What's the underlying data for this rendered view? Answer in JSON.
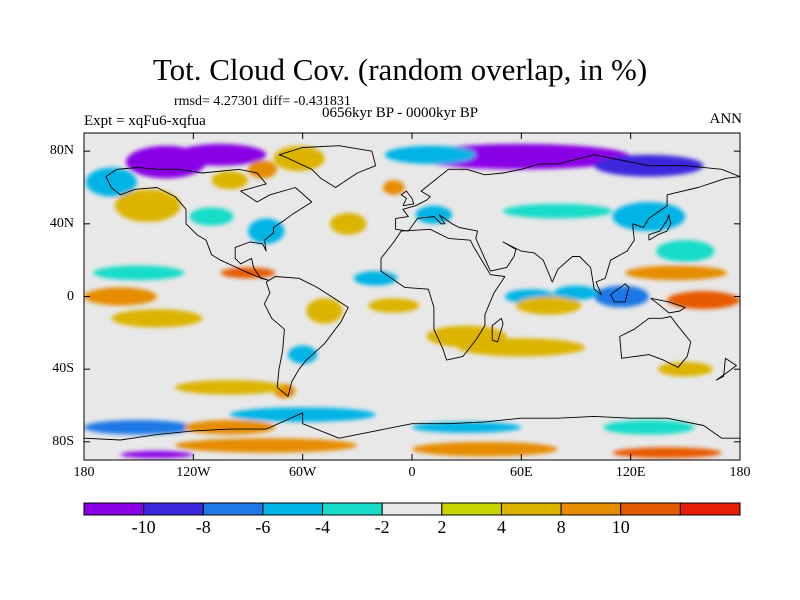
{
  "map": {
    "title": "Tot. Cloud Cov. (random overlap, in %)",
    "stats": "rmsd= 4.27301  diff= -0.431831",
    "expt": "Expt = xqFu6-xqfua",
    "period": "0656kyr BP - 0000kyr BP",
    "season": "ANN",
    "projection": "cylindrical equidistant",
    "lon_range": [
      -180,
      180
    ],
    "lat_range": [
      -90,
      90
    ],
    "lat_ticks": [
      {
        "value": 80,
        "label": "80N"
      },
      {
        "value": 40,
        "label": "40N"
      },
      {
        "value": 0,
        "label": "0"
      },
      {
        "value": -40,
        "label": "40S"
      },
      {
        "value": -80,
        "label": "80S"
      }
    ],
    "lon_ticks": [
      {
        "value": -180,
        "label": "180"
      },
      {
        "value": -120,
        "label": "120W"
      },
      {
        "value": -60,
        "label": "60W"
      },
      {
        "value": 0,
        "label": "0"
      },
      {
        "value": 60,
        "label": "60E"
      },
      {
        "value": 120,
        "label": "120E"
      },
      {
        "value": 180,
        "label": "180"
      }
    ],
    "background_color": "#e8e8e8"
  },
  "colorbar": {
    "colors": [
      "#8a00e6",
      "#3a28dc",
      "#1e78e6",
      "#00b4e6",
      "#18dcc8",
      "#e8e8e8",
      "#c8d400",
      "#dcb400",
      "#e68c00",
      "#e65a00",
      "#e61e0a"
    ],
    "labels": [
      {
        "boundary": 1,
        "text": "-10"
      },
      {
        "boundary": 2,
        "text": "-8"
      },
      {
        "boundary": 3,
        "text": "-6"
      },
      {
        "boundary": 4,
        "text": "-4"
      },
      {
        "boundary": 5,
        "text": "-2"
      },
      {
        "boundary": 6,
        "text": "2"
      },
      {
        "boundary": 7,
        "text": "4"
      },
      {
        "boundary": 8,
        "text": "8"
      },
      {
        "boundary": 9,
        "text": "10"
      }
    ]
  },
  "anomalies": [
    {
      "lon": -135,
      "lat": 74,
      "rx": 22,
      "ry": 9,
      "level": -11
    },
    {
      "lon": -105,
      "lat": 78,
      "rx": 25,
      "ry": 6,
      "level": -11
    },
    {
      "lon": -62,
      "lat": 76,
      "rx": 14,
      "ry": 7,
      "level": 5
    },
    {
      "lon": -82,
      "lat": 70,
      "rx": 8,
      "ry": 5,
      "level": 8
    },
    {
      "lon": -100,
      "lat": 64,
      "rx": 10,
      "ry": 5,
      "level": 7
    },
    {
      "lon": 60,
      "lat": 77,
      "rx": 60,
      "ry": 7,
      "level": -11
    },
    {
      "lon": 130,
      "lat": 72,
      "rx": 30,
      "ry": 6,
      "level": -9
    },
    {
      "lon": 10,
      "lat": 78,
      "rx": 25,
      "ry": 5,
      "level": -5
    },
    {
      "lon": -165,
      "lat": 63,
      "rx": 14,
      "ry": 8,
      "level": -5
    },
    {
      "lon": -145,
      "lat": 50,
      "rx": 18,
      "ry": 9,
      "level": 7
    },
    {
      "lon": -110,
      "lat": 44,
      "rx": 12,
      "ry": 5,
      "level": -3
    },
    {
      "lon": -80,
      "lat": 36,
      "rx": 10,
      "ry": 7,
      "level": -5
    },
    {
      "lon": -35,
      "lat": 40,
      "rx": 10,
      "ry": 6,
      "level": 6
    },
    {
      "lon": -10,
      "lat": 60,
      "rx": 6,
      "ry": 4,
      "level": 8
    },
    {
      "lon": 12,
      "lat": 45,
      "rx": 10,
      "ry": 5,
      "level": -5
    },
    {
      "lon": 80,
      "lat": 47,
      "rx": 30,
      "ry": 4,
      "level": -3
    },
    {
      "lon": 130,
      "lat": 44,
      "rx": 20,
      "ry": 8,
      "level": -5
    },
    {
      "lon": 150,
      "lat": 25,
      "rx": 16,
      "ry": 6,
      "level": -3
    },
    {
      "lon": 145,
      "lat": 13,
      "rx": 28,
      "ry": 4,
      "level": 8
    },
    {
      "lon": -150,
      "lat": 13,
      "rx": 25,
      "ry": 4,
      "level": -3
    },
    {
      "lon": -90,
      "lat": 13,
      "rx": 15,
      "ry": 3,
      "level": 10
    },
    {
      "lon": -160,
      "lat": 0,
      "rx": 20,
      "ry": 5,
      "level": 8
    },
    {
      "lon": -140,
      "lat": -12,
      "rx": 25,
      "ry": 5,
      "level": 6
    },
    {
      "lon": 160,
      "lat": -2,
      "rx": 20,
      "ry": 5,
      "level": 10
    },
    {
      "lon": 115,
      "lat": 0,
      "rx": 15,
      "ry": 6,
      "level": -7
    },
    {
      "lon": 90,
      "lat": 2,
      "rx": 12,
      "ry": 4,
      "level": -5
    },
    {
      "lon": 65,
      "lat": 0,
      "rx": 14,
      "ry": 4,
      "level": -5
    },
    {
      "lon": 75,
      "lat": -5,
      "rx": 18,
      "ry": 5,
      "level": 6
    },
    {
      "lon": 30,
      "lat": -22,
      "rx": 22,
      "ry": 6,
      "level": 6
    },
    {
      "lon": 60,
      "lat": -28,
      "rx": 35,
      "ry": 5,
      "level": 5
    },
    {
      "lon": -20,
      "lat": 10,
      "rx": 12,
      "ry": 4,
      "level": -5
    },
    {
      "lon": -10,
      "lat": -5,
      "rx": 14,
      "ry": 4,
      "level": 7
    },
    {
      "lon": -48,
      "lat": -8,
      "rx": 10,
      "ry": 7,
      "level": 5
    },
    {
      "lon": -60,
      "lat": -32,
      "rx": 8,
      "ry": 5,
      "level": -5
    },
    {
      "lon": -70,
      "lat": -52,
      "rx": 6,
      "ry": 4,
      "level": 9
    },
    {
      "lon": -100,
      "lat": -50,
      "rx": 30,
      "ry": 4,
      "level": 5
    },
    {
      "lon": 150,
      "lat": -40,
      "rx": 15,
      "ry": 4,
      "level": 5
    },
    {
      "lon": -60,
      "lat": -65,
      "rx": 40,
      "ry": 4,
      "level": -5
    },
    {
      "lon": -150,
      "lat": -72,
      "rx": 30,
      "ry": 4,
      "level": -7
    },
    {
      "lon": -100,
      "lat": -72,
      "rx": 25,
      "ry": 4,
      "level": 8
    },
    {
      "lon": 30,
      "lat": -72,
      "rx": 30,
      "ry": 3,
      "level": -5
    },
    {
      "lon": 130,
      "lat": -72,
      "rx": 25,
      "ry": 4,
      "level": -3
    },
    {
      "lon": -80,
      "lat": -82,
      "rx": 50,
      "ry": 4,
      "level": 9
    },
    {
      "lon": 40,
      "lat": -84,
      "rx": 40,
      "ry": 4,
      "level": 8
    },
    {
      "lon": 140,
      "lat": -86,
      "rx": 30,
      "ry": 3,
      "level": 10
    },
    {
      "lon": -140,
      "lat": -87,
      "rx": 20,
      "ry": 2,
      "level": -11
    }
  ],
  "coastlines": [
    {
      "name": "north-america",
      "points": [
        [
          -168,
          66
        ],
        [
          -162,
          70
        ],
        [
          -150,
          71
        ],
        [
          -140,
          70
        ],
        [
          -128,
          70
        ],
        [
          -115,
          68
        ],
        [
          -95,
          70
        ],
        [
          -85,
          68
        ],
        [
          -80,
          62
        ],
        [
          -94,
          58
        ],
        [
          -85,
          52
        ],
        [
          -78,
          56
        ],
        [
          -64,
          60
        ],
        [
          -55,
          52
        ],
        [
          -66,
          45
        ],
        [
          -70,
          42
        ],
        [
          -76,
          38
        ],
        [
          -76,
          35
        ],
        [
          -81,
          31
        ],
        [
          -80,
          25
        ],
        [
          -82,
          29
        ],
        [
          -89,
          30
        ],
        [
          -97,
          27
        ],
        [
          -97,
          21
        ],
        [
          -94,
          18
        ],
        [
          -88,
          21
        ],
        [
          -87,
          16
        ],
        [
          -83,
          10
        ],
        [
          -79,
          9
        ],
        [
          -85,
          11
        ],
        [
          -92,
          14
        ],
        [
          -105,
          20
        ],
        [
          -110,
          23
        ],
        [
          -113,
          31
        ],
        [
          -118,
          34
        ],
        [
          -124,
          40
        ],
        [
          -124,
          48
        ],
        [
          -130,
          55
        ],
        [
          -140,
          60
        ],
        [
          -152,
          59
        ],
        [
          -160,
          56
        ],
        [
          -165,
          60
        ],
        [
          -168,
          66
        ]
      ]
    },
    {
      "name": "greenland",
      "points": [
        [
          -73,
          78
        ],
        [
          -60,
          82
        ],
        [
          -40,
          83
        ],
        [
          -22,
          80
        ],
        [
          -20,
          72
        ],
        [
          -30,
          68
        ],
        [
          -42,
          60
        ],
        [
          -50,
          65
        ],
        [
          -55,
          70
        ],
        [
          -70,
          77
        ],
        [
          -73,
          78
        ]
      ]
    },
    {
      "name": "south-america",
      "points": [
        [
          -80,
          8
        ],
        [
          -75,
          11
        ],
        [
          -62,
          10
        ],
        [
          -52,
          5
        ],
        [
          -35,
          -6
        ],
        [
          -39,
          -14
        ],
        [
          -48,
          -26
        ],
        [
          -58,
          -35
        ],
        [
          -62,
          -40
        ],
        [
          -66,
          -47
        ],
        [
          -68,
          -55
        ],
        [
          -74,
          -50
        ],
        [
          -73,
          -40
        ],
        [
          -71,
          -30
        ],
        [
          -70,
          -18
        ],
        [
          -77,
          -12
        ],
        [
          -81,
          -4
        ],
        [
          -78,
          2
        ],
        [
          -80,
          8
        ]
      ]
    },
    {
      "name": "africa",
      "points": [
        [
          -17,
          21
        ],
        [
          -10,
          30
        ],
        [
          -6,
          36
        ],
        [
          10,
          37
        ],
        [
          20,
          32
        ],
        [
          32,
          31
        ],
        [
          34,
          27
        ],
        [
          43,
          12
        ],
        [
          51,
          11
        ],
        [
          45,
          2
        ],
        [
          40,
          -10
        ],
        [
          40,
          -16
        ],
        [
          35,
          -24
        ],
        [
          28,
          -33
        ],
        [
          19,
          -35
        ],
        [
          17,
          -29
        ],
        [
          12,
          -18
        ],
        [
          12,
          -6
        ],
        [
          9,
          4
        ],
        [
          -4,
          5
        ],
        [
          -17,
          14
        ],
        [
          -17,
          21
        ]
      ]
    },
    {
      "name": "eurasia",
      "points": [
        [
          -9,
          43
        ],
        [
          -9,
          37
        ],
        [
          -2,
          36
        ],
        [
          3,
          43
        ],
        [
          12,
          44
        ],
        [
          16,
          40
        ],
        [
          18,
          40
        ],
        [
          15,
          45
        ],
        [
          22,
          40
        ],
        [
          26,
          38
        ],
        [
          36,
          36
        ],
        [
          35,
          32
        ],
        [
          43,
          14
        ],
        [
          52,
          16
        ],
        [
          56,
          22
        ],
        [
          57,
          26
        ],
        [
          50,
          30
        ],
        [
          60,
          25
        ],
        [
          67,
          24
        ],
        [
          72,
          20
        ],
        [
          77,
          8
        ],
        [
          80,
          15
        ],
        [
          88,
          22
        ],
        [
          92,
          22
        ],
        [
          98,
          16
        ],
        [
          100,
          4
        ],
        [
          104,
          1
        ],
        [
          101,
          8
        ],
        [
          106,
          10
        ],
        [
          109,
          20
        ],
        [
          118,
          25
        ],
        [
          122,
          31
        ],
        [
          121,
          40
        ],
        [
          127,
          38
        ],
        [
          130,
          43
        ],
        [
          140,
          50
        ],
        [
          140,
          56
        ],
        [
          157,
          60
        ],
        [
          163,
          62
        ],
        [
          172,
          65
        ],
        [
          180,
          66
        ],
        [
          170,
          70
        ],
        [
          150,
          72
        ],
        [
          130,
          72
        ],
        [
          110,
          76
        ],
        [
          100,
          78
        ],
        [
          80,
          73
        ],
        [
          70,
          73
        ],
        [
          60,
          70
        ],
        [
          50,
          68
        ],
        [
          40,
          67
        ],
        [
          30,
          70
        ],
        [
          20,
          70
        ],
        [
          10,
          62
        ],
        [
          5,
          58
        ],
        [
          10,
          55
        ],
        [
          8,
          53
        ],
        [
          2,
          50
        ],
        [
          -5,
          48
        ],
        [
          -2,
          44
        ],
        [
          -9,
          43
        ]
      ]
    },
    {
      "name": "great-britain",
      "points": [
        [
          -5,
          50
        ],
        [
          1,
          51
        ],
        [
          0,
          54
        ],
        [
          -3,
          58
        ],
        [
          -6,
          56
        ],
        [
          -3,
          54
        ],
        [
          -5,
          50
        ]
      ]
    },
    {
      "name": "japan",
      "points": [
        [
          130,
          31
        ],
        [
          135,
          34
        ],
        [
          140,
          36
        ],
        [
          142,
          40
        ],
        [
          141,
          45
        ],
        [
          140,
          42
        ],
        [
          136,
          36
        ],
        [
          130,
          34
        ],
        [
          130,
          31
        ]
      ]
    },
    {
      "name": "australia",
      "points": [
        [
          114,
          -22
        ],
        [
          122,
          -18
        ],
        [
          130,
          -12
        ],
        [
          137,
          -12
        ],
        [
          142,
          -11
        ],
        [
          145,
          -15
        ],
        [
          153,
          -25
        ],
        [
          151,
          -33
        ],
        [
          146,
          -39
        ],
        [
          138,
          -35
        ],
        [
          130,
          -32
        ],
        [
          115,
          -34
        ],
        [
          114,
          -22
        ]
      ]
    },
    {
      "name": "borneo",
      "points": [
        [
          109,
          1
        ],
        [
          117,
          7
        ],
        [
          119,
          5
        ],
        [
          117,
          -3
        ],
        [
          111,
          -3
        ],
        [
          109,
          1
        ]
      ]
    },
    {
      "name": "new-guinea",
      "points": [
        [
          131,
          -1
        ],
        [
          141,
          -3
        ],
        [
          150,
          -6
        ],
        [
          147,
          -8
        ],
        [
          141,
          -9
        ],
        [
          135,
          -4
        ],
        [
          131,
          -1
        ]
      ]
    },
    {
      "name": "madagascar",
      "points": [
        [
          44,
          -24
        ],
        [
          47,
          -25
        ],
        [
          50,
          -15
        ],
        [
          49,
          -12
        ],
        [
          44,
          -16
        ],
        [
          44,
          -24
        ]
      ]
    },
    {
      "name": "new-zealand",
      "points": [
        [
          172,
          -34
        ],
        [
          178,
          -38
        ],
        [
          174,
          -41
        ],
        [
          167,
          -46
        ],
        [
          171,
          -44
        ],
        [
          172,
          -34
        ]
      ]
    },
    {
      "name": "antarctica",
      "points": [
        [
          -180,
          -78
        ],
        [
          -160,
          -79
        ],
        [
          -140,
          -76
        ],
        [
          -120,
          -74
        ],
        [
          -100,
          -73
        ],
        [
          -80,
          -73
        ],
        [
          -60,
          -64
        ],
        [
          -60,
          -70
        ],
        [
          -40,
          -78
        ],
        [
          -20,
          -74
        ],
        [
          0,
          -70
        ],
        [
          20,
          -70
        ],
        [
          40,
          -69
        ],
        [
          60,
          -67
        ],
        [
          80,
          -67
        ],
        [
          100,
          -66
        ],
        [
          120,
          -67
        ],
        [
          140,
          -67
        ],
        [
          160,
          -71
        ],
        [
          170,
          -78
        ],
        [
          180,
          -78
        ]
      ]
    }
  ]
}
